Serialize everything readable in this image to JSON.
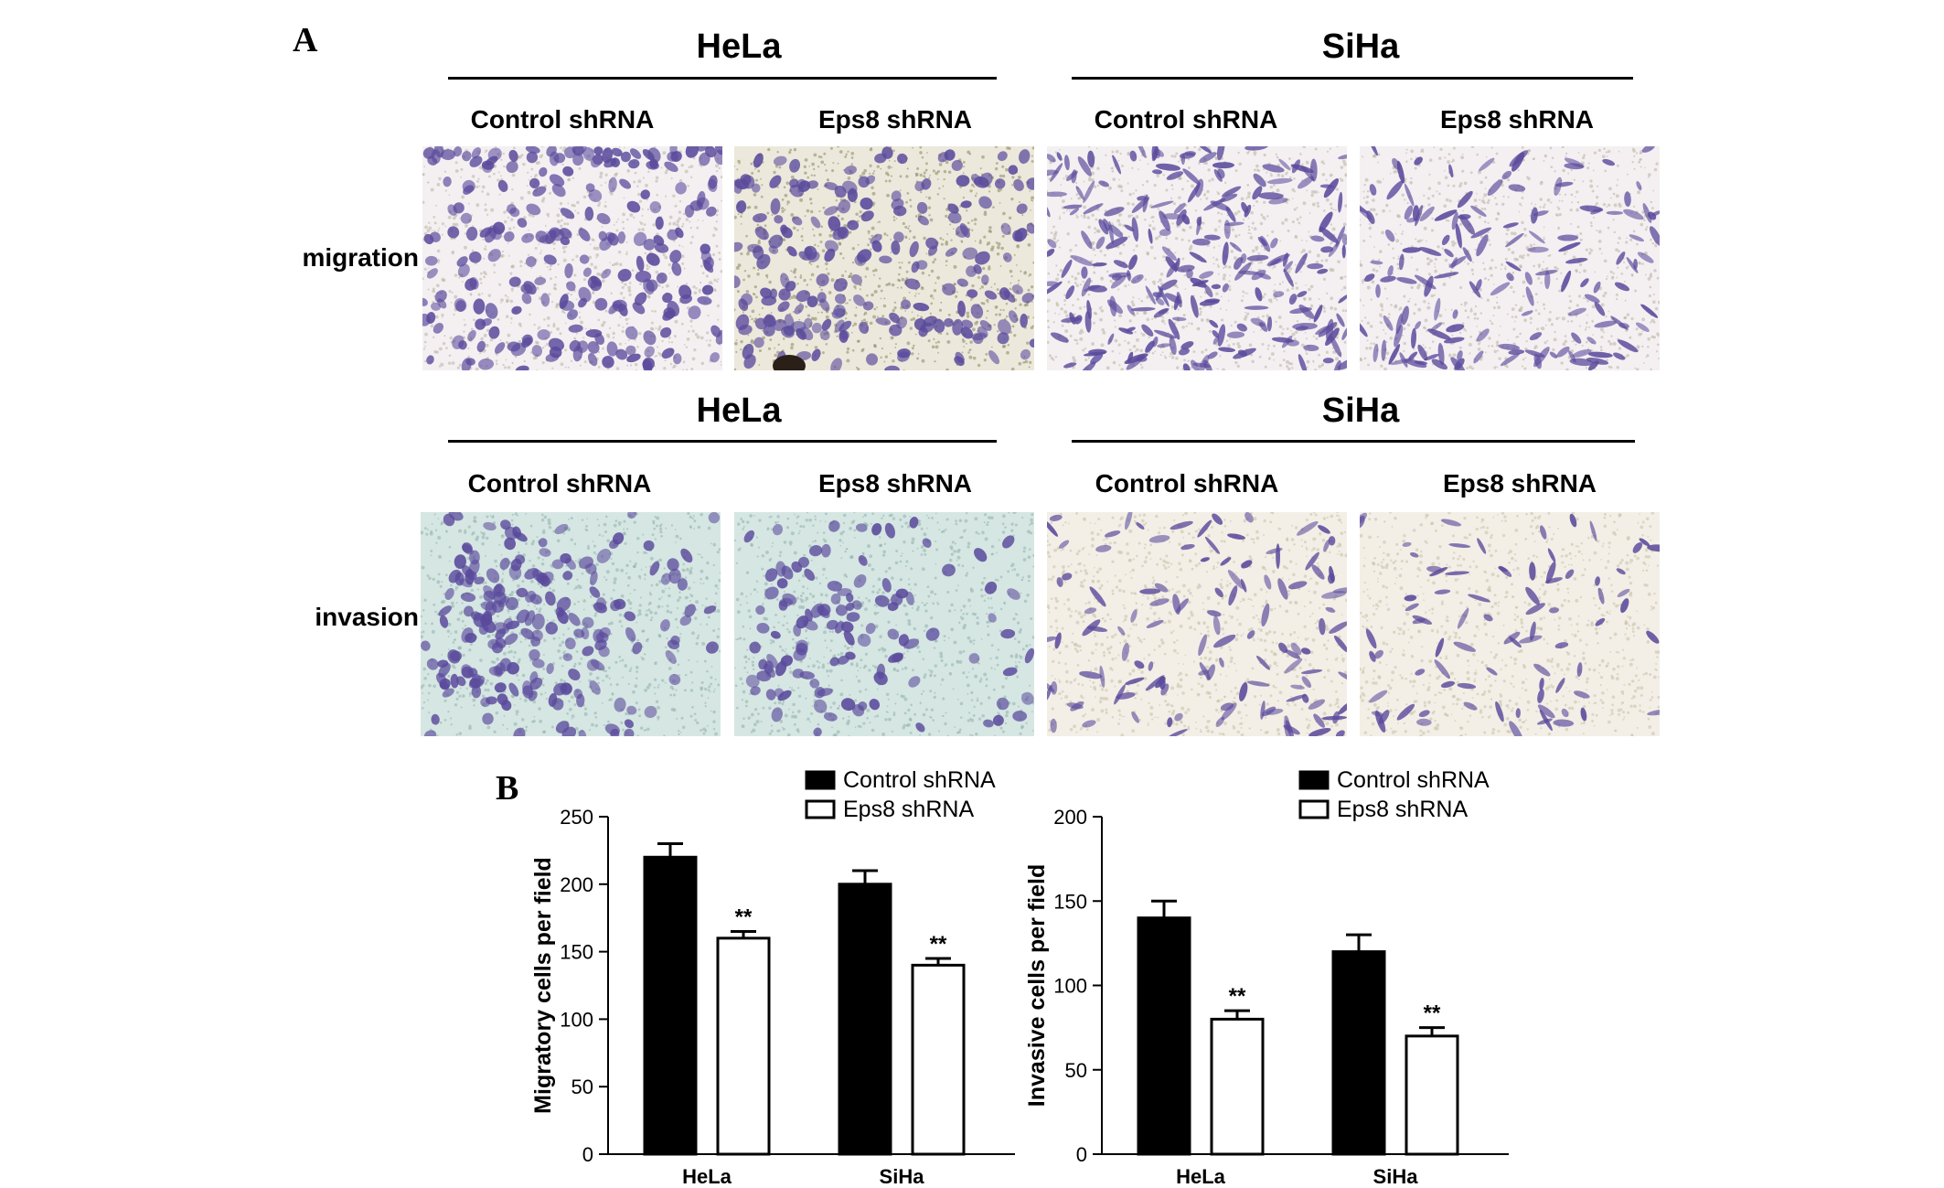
{
  "panel_a": {
    "letter": "A",
    "rows": [
      {
        "label": "migration",
        "groups": [
          {
            "title": "HeLa",
            "conditions": [
              "Control  shRNA",
              "Eps8 shRNA"
            ]
          },
          {
            "title": "SiHa",
            "conditions": [
              "Control  shRNA",
              "Eps8 shRNA"
            ]
          }
        ]
      },
      {
        "label": "invasion",
        "groups": [
          {
            "title": "HeLa",
            "conditions": [
              "Control  shRNA",
              "Eps8 shRNA"
            ]
          },
          {
            "title": "SiHa",
            "conditions": [
              "Control  shRNA",
              "Eps8 shRNA"
            ]
          }
        ]
      }
    ],
    "colors": {
      "migration_bg": "#f4f0f2",
      "invasion_hela_bg": "#d6e6e3",
      "invasion_siha_bg": "#f3efe6",
      "cell": "#5a4a9c"
    }
  },
  "panel_b": {
    "letter": "B"
  },
  "chart_data": [
    {
      "type": "bar",
      "ylabel": "Migratory cells per field",
      "categories": [
        "HeLa",
        "SiHa"
      ],
      "ylim": [
        0,
        250
      ],
      "yticks": [
        0,
        50,
        100,
        150,
        200,
        250
      ],
      "series": [
        {
          "name": "Control shRNA",
          "values": [
            220,
            200
          ],
          "errors": [
            10,
            10
          ],
          "color": "#000000"
        },
        {
          "name": "Eps8 shRNA",
          "values": [
            160,
            140
          ],
          "errors": [
            5,
            5
          ],
          "color": "#ffffff",
          "annotations": [
            "**",
            "**"
          ]
        }
      ],
      "legend": "top-right"
    },
    {
      "type": "bar",
      "ylabel": "Invasive cells per field",
      "categories": [
        "HeLa",
        "SiHa"
      ],
      "ylim": [
        0,
        200
      ],
      "yticks": [
        0,
        50,
        100,
        150,
        200
      ],
      "series": [
        {
          "name": "Control shRNA",
          "values": [
            140,
            120
          ],
          "errors": [
            10,
            10
          ],
          "color": "#000000"
        },
        {
          "name": "Eps8 shRNA",
          "values": [
            80,
            70
          ],
          "errors": [
            5,
            5
          ],
          "color": "#ffffff",
          "annotations": [
            "**",
            "**"
          ]
        }
      ],
      "legend": "top-right"
    }
  ]
}
